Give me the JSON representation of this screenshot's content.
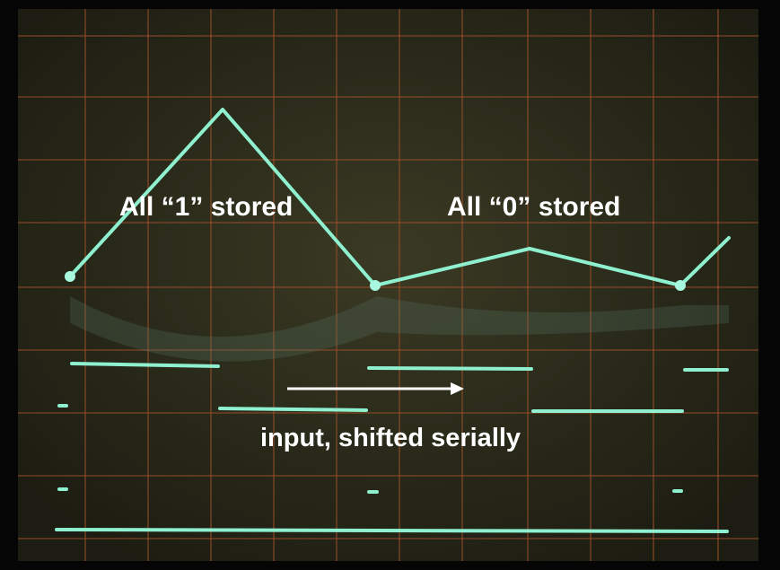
{
  "labels": {
    "top_left": "All “1” stored",
    "top_right": "All “0” stored",
    "arrow": "input, shifted serially"
  }
}
